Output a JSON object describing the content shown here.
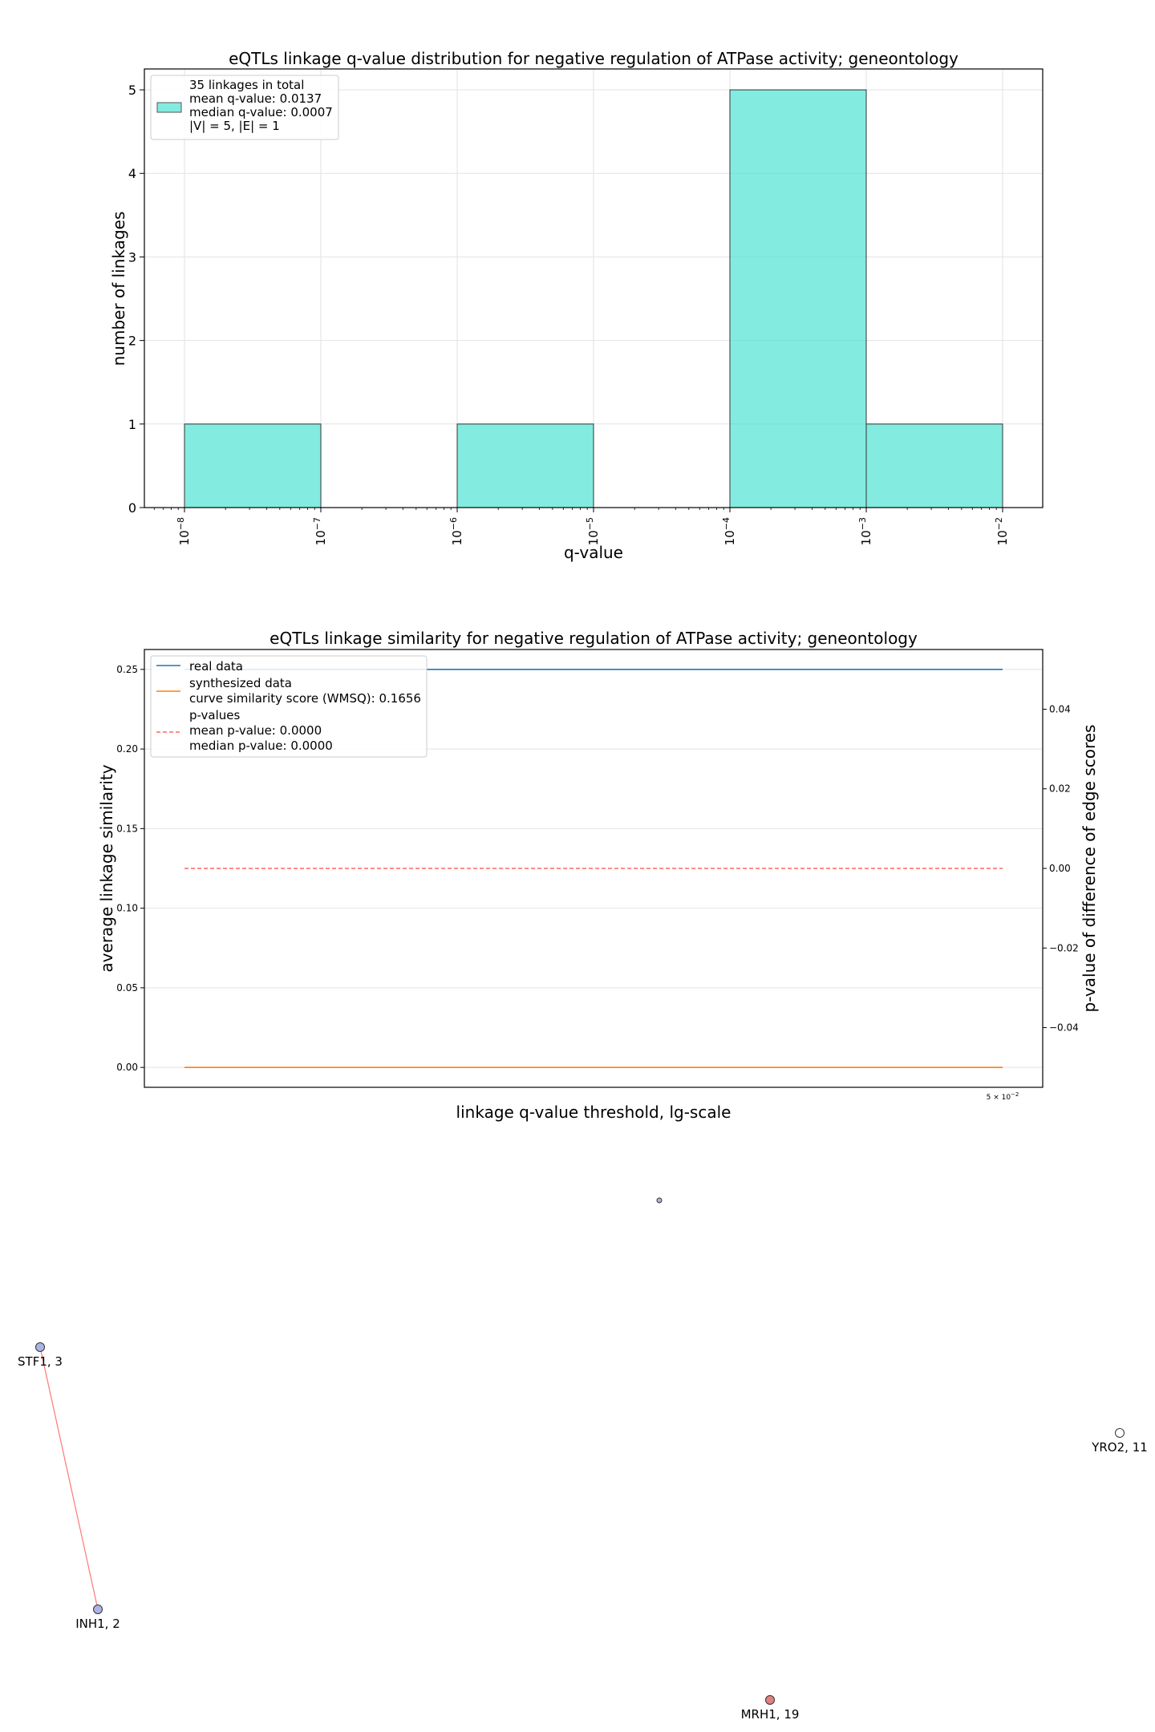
{
  "chart_data": [
    {
      "type": "bar",
      "title": "eQTLs linkage q-value distribution for negative regulation of ATPase activity; geneontology",
      "xlabel": "q-value",
      "ylabel": "number of linkages",
      "x_scale": "log",
      "xlim": [
        1e-08,
        0.01
      ],
      "ylim": [
        0,
        5.25
      ],
      "x_ticks": [
        {
          "value": 1e-08,
          "base": "10",
          "exp": "−8"
        },
        {
          "value": 1e-07,
          "base": "10",
          "exp": "−7"
        },
        {
          "value": 1e-06,
          "base": "10",
          "exp": "−6"
        },
        {
          "value": 1e-05,
          "base": "10",
          "exp": "−5"
        },
        {
          "value": 0.0001,
          "base": "10",
          "exp": "−4"
        },
        {
          "value": 0.001,
          "base": "10",
          "exp": "−3"
        },
        {
          "value": 0.01,
          "base": "10",
          "exp": "−2"
        }
      ],
      "y_ticks": [
        "0",
        "1",
        "2",
        "3",
        "4",
        "5"
      ],
      "bins": [
        {
          "from": 1e-08,
          "to": 1e-07,
          "count": 1
        },
        {
          "from": 1e-06,
          "to": 1e-05,
          "count": 1
        },
        {
          "from": 0.0001,
          "to": 0.001,
          "count": 5
        },
        {
          "from": 0.001,
          "to": 0.01,
          "count": 1
        }
      ],
      "bar_color": "#40e0d0",
      "legend_position": "upper-left",
      "legend": [
        "35 linkages in total",
        "mean q-value: 0.0137",
        "median q-value: 0.0007",
        "|V| = 5, |E| = 1"
      ],
      "grid": true
    },
    {
      "type": "line",
      "title": "eQTLs linkage similarity for negative regulation of ATPase activity; geneontology",
      "xlabel": "linkage q-value threshold, lg-scale",
      "ylabel": "average linkage similarity",
      "ylabel_right": "p-value of difference of edge scores",
      "x_tick": {
        "base": "5 × 10",
        "exp": "−2"
      },
      "y_ticks": [
        "0.00",
        "0.05",
        "0.10",
        "0.15",
        "0.20",
        "0.25"
      ],
      "y_ticks_right": [
        "−0.04",
        "−0.02",
        "0.00",
        "0.02",
        "0.04"
      ],
      "ylim": [
        -0.0125,
        0.2625
      ],
      "ylim_right": [
        -0.055,
        0.055
      ],
      "series": [
        {
          "name": "real data",
          "color": "#1f77b4",
          "dash": "solid",
          "axis": "left",
          "values": [
            0.25,
            0.25
          ]
        },
        {
          "name": "synthesized data",
          "color": "#ff7f0e",
          "dash": "solid",
          "axis": "left",
          "values": [
            0.0,
            0.0
          ]
        },
        {
          "name": "p-values",
          "color": "#ff6666",
          "dash": "dashed",
          "axis": "right",
          "values": [
            0.0,
            0.0
          ]
        }
      ],
      "legend_position": "upper-left",
      "legend": [
        {
          "key": "real",
          "lines": [
            "real data"
          ]
        },
        {
          "key": "synth",
          "lines": [
            "synthesized data",
            "curve similarity score (WMSQ): 0.1656"
          ]
        },
        {
          "key": "pval",
          "lines": [
            "p-values",
            "mean p-value: 0.0000",
            "median p-value: 0.0000"
          ]
        }
      ],
      "grid": true
    }
  ],
  "network": {
    "nodes": [
      {
        "id": "center",
        "label": "",
        "color": "#aab4e6",
        "small": true
      },
      {
        "id": "STF1",
        "label": "STF1, 3",
        "color": "#aab4e6"
      },
      {
        "id": "INH1",
        "label": "INH1, 2",
        "color": "#aab4e6"
      },
      {
        "id": "YRO2",
        "label": "YRO2, 11",
        "color": "#ffffff"
      },
      {
        "id": "MRH1",
        "label": "MRH1, 19",
        "color": "#e28080"
      }
    ],
    "edges": [
      {
        "from": "STF1",
        "to": "INH1",
        "color": "#ff7777"
      }
    ]
  }
}
